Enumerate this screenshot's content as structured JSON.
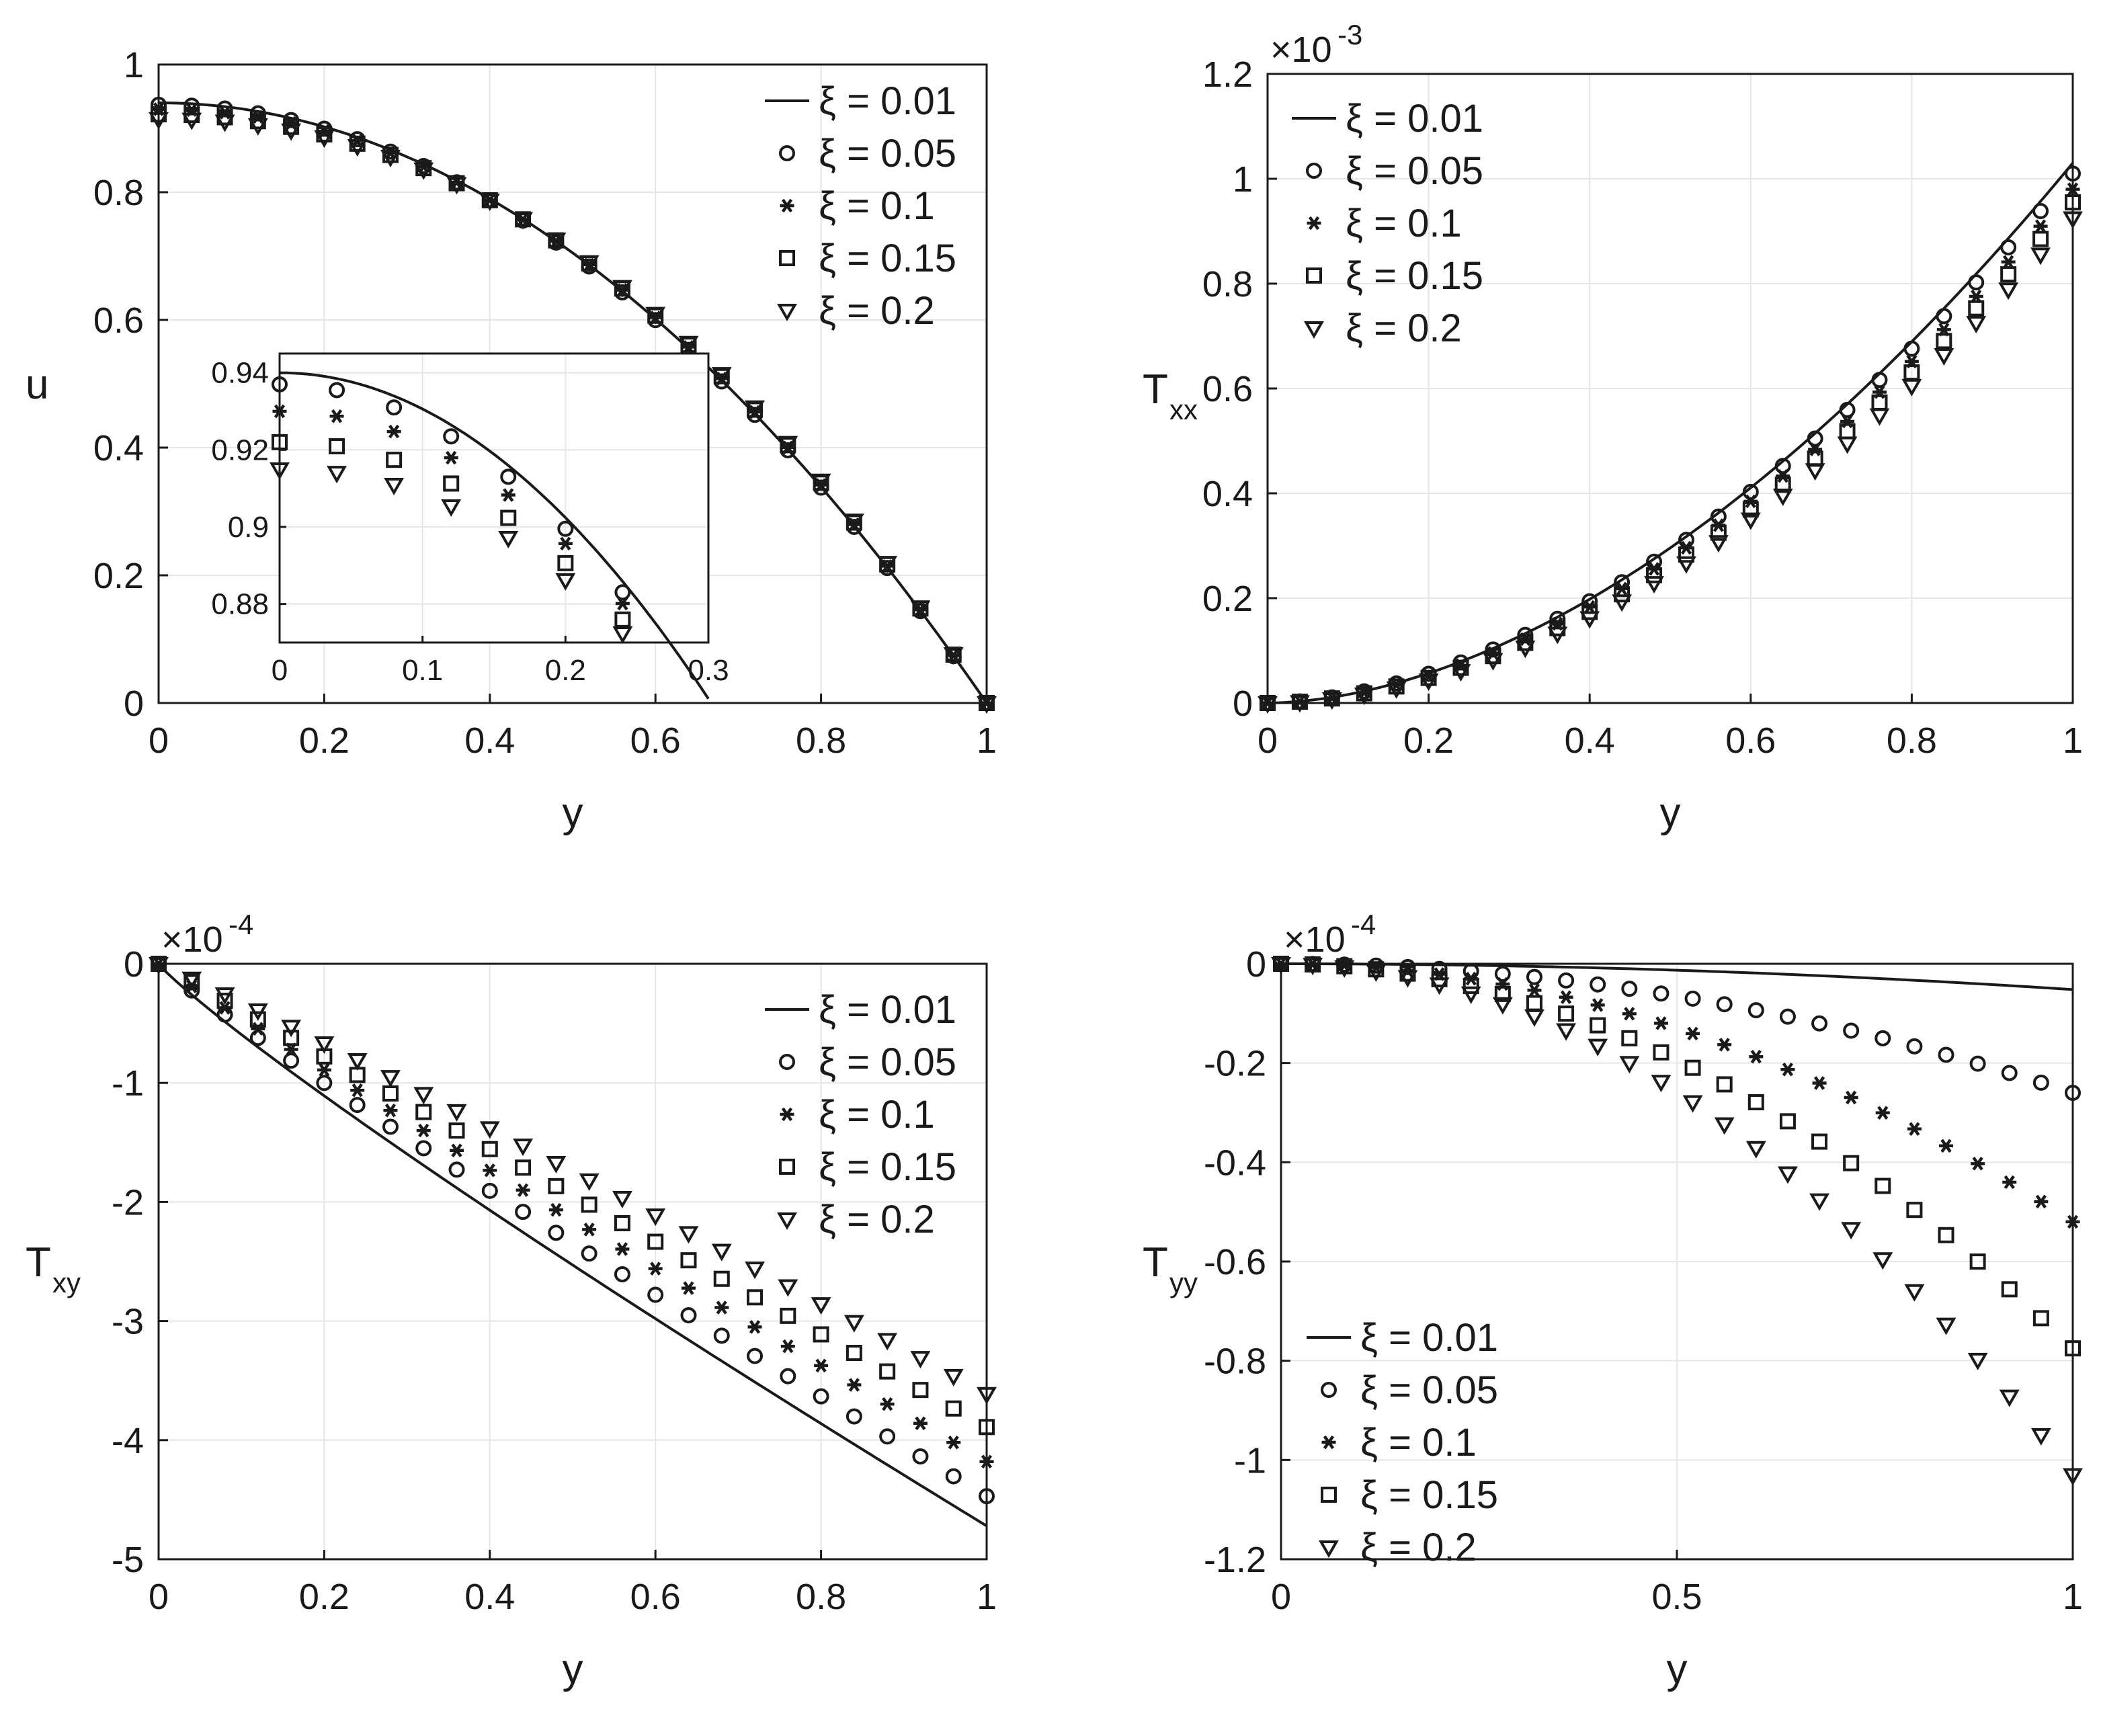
{
  "figure": {
    "background": "#ffffff",
    "ink": "#1a1a1a",
    "grid": "#e6e6e6"
  },
  "legend_labels": [
    "ξ = 0.01",
    "ξ = 0.05",
    "ξ = 0.1",
    "ξ = 0.15",
    "ξ = 0.2"
  ],
  "chart_data": [
    {
      "id": "u",
      "type": "line+scatter",
      "ylabel": "u",
      "xlabel": "y",
      "xlim": [
        0,
        1
      ],
      "ylim": [
        0,
        1
      ],
      "xticks": [
        0,
        0.2,
        0.4,
        0.6,
        0.8,
        1
      ],
      "xtick_labels": [
        "0",
        "0.2",
        "0.4",
        "0.6",
        "0.8",
        "1"
      ],
      "yticks": [
        0,
        0.2,
        0.4,
        0.6,
        0.8,
        1
      ],
      "ytick_labels": [
        "0",
        "0.2",
        "0.4",
        "0.6",
        "0.8",
        "1"
      ],
      "exponent": "",
      "legend_position": "top-right",
      "grid": true,
      "line": {
        "name": "ξ = 0.01",
        "a": 0.94,
        "p": 2.0
      },
      "series": [
        {
          "name": "ξ = 0.05",
          "marker": "circle",
          "a": 0.937,
          "p": 2.0
        },
        {
          "name": "ξ = 0.1",
          "marker": "asterisk",
          "a": 0.93,
          "p": 2.05
        },
        {
          "name": "ξ = 0.15",
          "marker": "square",
          "a": 0.922,
          "p": 2.1
        },
        {
          "name": "ξ = 0.2",
          "marker": "triangle-down",
          "a": 0.915,
          "p": 2.15
        }
      ],
      "inset": {
        "xlim": [
          0,
          0.3
        ],
        "ylim": [
          0.87,
          0.945
        ],
        "xticks": [
          0,
          0.1,
          0.2,
          0.3
        ],
        "xtick_labels": [
          "0",
          "0.1",
          "0.2",
          "0.3"
        ],
        "yticks": [
          0.88,
          0.9,
          0.92,
          0.94
        ],
        "ytick_labels": [
          "0.88",
          "0.9",
          "0.92",
          "0.94"
        ],
        "line_x_max": 0.3,
        "x_points": [
          0,
          0.04,
          0.08,
          0.12,
          0.16,
          0.2,
          0.24,
          0.28
        ]
      }
    },
    {
      "id": "Txx",
      "type": "line+scatter",
      "ylabel": "T",
      "ylabel_sub": "xx",
      "xlabel": "y",
      "xlim": [
        0,
        1
      ],
      "ylim": [
        0,
        1.2
      ],
      "xticks": [
        0,
        0.2,
        0.4,
        0.6,
        0.8,
        1
      ],
      "xtick_labels": [
        "0",
        "0.2",
        "0.4",
        "0.6",
        "0.8",
        "1"
      ],
      "yticks": [
        0,
        0.2,
        0.4,
        0.6,
        0.8,
        1,
        1.2
      ],
      "ytick_labels": [
        "0",
        "0.2",
        "0.4",
        "0.6",
        "0.8",
        "1",
        "1.2"
      ],
      "exponent": "×10",
      "exponent_power": "-3",
      "legend_position": "top-left",
      "grid": true,
      "line": {
        "name": "ξ = 0.01",
        "a": 1.03,
        "p": 1.8
      },
      "series": [
        {
          "name": "ξ = 0.05",
          "marker": "circle",
          "a": 1.01,
          "p": 1.8
        },
        {
          "name": "ξ = 0.1",
          "marker": "asterisk",
          "a": 0.98,
          "p": 1.83
        },
        {
          "name": "ξ = 0.15",
          "marker": "square",
          "a": 0.955,
          "p": 1.86
        },
        {
          "name": "ξ = 0.2",
          "marker": "triangle-down",
          "a": 0.925,
          "p": 1.9
        }
      ]
    },
    {
      "id": "Txy",
      "type": "line+scatter",
      "ylabel": "T",
      "ylabel_sub": "xy",
      "xlabel": "y",
      "xlim": [
        0,
        1
      ],
      "ylim": [
        -5,
        0
      ],
      "xticks": [
        0,
        0.2,
        0.4,
        0.6,
        0.8,
        1
      ],
      "xtick_labels": [
        "0",
        "0.2",
        "0.4",
        "0.6",
        "0.8",
        "1"
      ],
      "yticks": [
        -5,
        -4,
        -3,
        -2,
        -1,
        0
      ],
      "ytick_labels": [
        "-5",
        "-4",
        "-3",
        "-2",
        "-1",
        "0"
      ],
      "exponent": "×10",
      "exponent_power": "-4",
      "legend_position": "top-right",
      "grid": true,
      "line": {
        "name": "ξ = 0.01",
        "a": -4.72,
        "p": 0.9
      },
      "series": [
        {
          "name": "ξ = 0.05",
          "marker": "circle",
          "a": -4.47,
          "p": 0.93
        },
        {
          "name": "ξ = 0.1",
          "marker": "asterisk",
          "a": -4.18,
          "p": 0.96
        },
        {
          "name": "ξ = 0.15",
          "marker": "square",
          "a": -3.89,
          "p": 1.0
        },
        {
          "name": "ξ = 0.2",
          "marker": "triangle-down",
          "a": -3.61,
          "p": 1.05
        }
      ]
    },
    {
      "id": "Tyy",
      "type": "line+scatter",
      "ylabel": "T",
      "ylabel_sub": "yy",
      "xlabel": "y",
      "xlim": [
        0,
        1
      ],
      "ylim": [
        -1.2,
        0
      ],
      "xticks": [
        0,
        0.5,
        1
      ],
      "xtick_labels": [
        "0",
        "0.5",
        "1"
      ],
      "yticks": [
        -1.2,
        -1,
        -0.8,
        -0.6,
        -0.4,
        -0.2,
        0
      ],
      "ytick_labels": [
        "-1.2",
        "-1",
        "-0.8",
        "-0.6",
        "-0.4",
        "-0.2",
        "0"
      ],
      "exponent": "×10",
      "exponent_power": "-4",
      "legend_position": "bottom-left",
      "grid": true,
      "line": {
        "name": "ξ = 0.01",
        "a": -0.052,
        "p": 2.0
      },
      "series": [
        {
          "name": "ξ = 0.05",
          "marker": "circle",
          "a": -0.26,
          "p": 2.0
        },
        {
          "name": "ξ = 0.1",
          "marker": "asterisk",
          "a": -0.52,
          "p": 2.0
        },
        {
          "name": "ξ = 0.15",
          "marker": "square",
          "a": -0.775,
          "p": 2.0
        },
        {
          "name": "ξ = 0.2",
          "marker": "triangle-down",
          "a": -1.03,
          "p": 2.0
        }
      ]
    }
  ],
  "x_points": [
    0,
    0.04,
    0.08,
    0.12,
    0.16,
    0.2,
    0.24,
    0.28,
    0.32,
    0.36,
    0.4,
    0.44,
    0.48,
    0.52,
    0.56,
    0.6,
    0.64,
    0.68,
    0.72,
    0.76,
    0.8,
    0.84,
    0.88,
    0.92,
    0.96,
    1.0
  ]
}
